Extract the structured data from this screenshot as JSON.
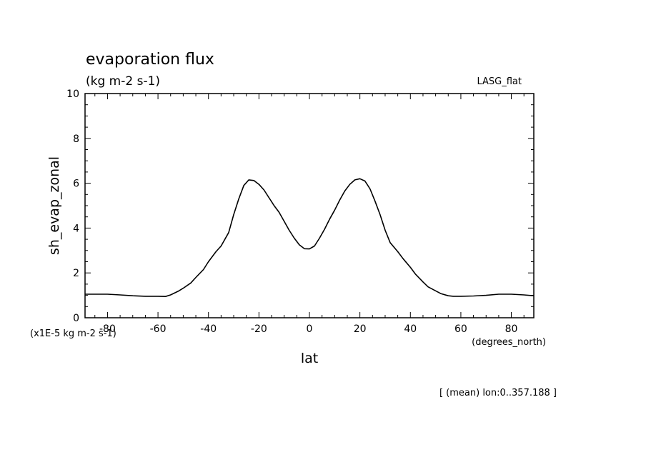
{
  "chart_data": {
    "type": "line",
    "title": "evaporation flux",
    "subtitle": "(kg m-2 s-1)",
    "experiment_label": "LASG_flat",
    "ylabel": "sh_evap_zonal",
    "yunits": "(x1E-5 kg m-2 s-1)",
    "xlabel": "lat",
    "xunits": "(degrees_north)",
    "footnote": "[ (mean) lon:0..357.188 ]",
    "xlim": [
      -88.9,
      88.9
    ],
    "ylim": [
      0,
      10
    ],
    "x_ticks": [
      -80,
      -60,
      -40,
      -20,
      0,
      20,
      40,
      60,
      80
    ],
    "x_tick_labels": [
      "-80",
      "-60",
      "-40",
      "-20",
      "0",
      "20",
      "40",
      "60",
      "80"
    ],
    "y_ticks": [
      0,
      2,
      4,
      6,
      8,
      10
    ],
    "y_tick_labels": [
      "0",
      "2",
      "4",
      "6",
      "8",
      "10"
    ],
    "grid": false,
    "series": [
      {
        "line_color": "#000000",
        "x": [
          -88.9,
          -80,
          -75,
          -70,
          -65,
          -60,
          -57,
          -55,
          -52,
          -50,
          -47,
          -45,
          -42,
          -40,
          -37,
          -35,
          -32,
          -30,
          -28,
          -26,
          -24,
          -22,
          -20,
          -18,
          -16,
          -14,
          -12,
          -10,
          -8,
          -6,
          -4,
          -2,
          0,
          2,
          4,
          6,
          8,
          10,
          12,
          14,
          16,
          18,
          20,
          22,
          24,
          26,
          28,
          30,
          32,
          35,
          37,
          40,
          42,
          45,
          47,
          50,
          52,
          55,
          57,
          60,
          65,
          70,
          75,
          80,
          85,
          88.9
        ],
        "y": [
          1.05,
          1.05,
          1.02,
          0.98,
          0.96,
          0.96,
          0.95,
          1.02,
          1.18,
          1.32,
          1.55,
          1.8,
          2.15,
          2.5,
          2.95,
          3.2,
          3.8,
          4.6,
          5.3,
          5.9,
          6.15,
          6.12,
          5.95,
          5.7,
          5.35,
          5.0,
          4.7,
          4.3,
          3.9,
          3.55,
          3.25,
          3.08,
          3.07,
          3.2,
          3.55,
          3.95,
          4.4,
          4.8,
          5.25,
          5.65,
          5.95,
          6.15,
          6.2,
          6.1,
          5.75,
          5.2,
          4.6,
          3.9,
          3.35,
          2.95,
          2.65,
          2.25,
          1.95,
          1.6,
          1.38,
          1.2,
          1.08,
          0.98,
          0.96,
          0.96,
          0.97,
          1.0,
          1.05,
          1.05,
          1.02,
          0.98
        ]
      }
    ]
  }
}
